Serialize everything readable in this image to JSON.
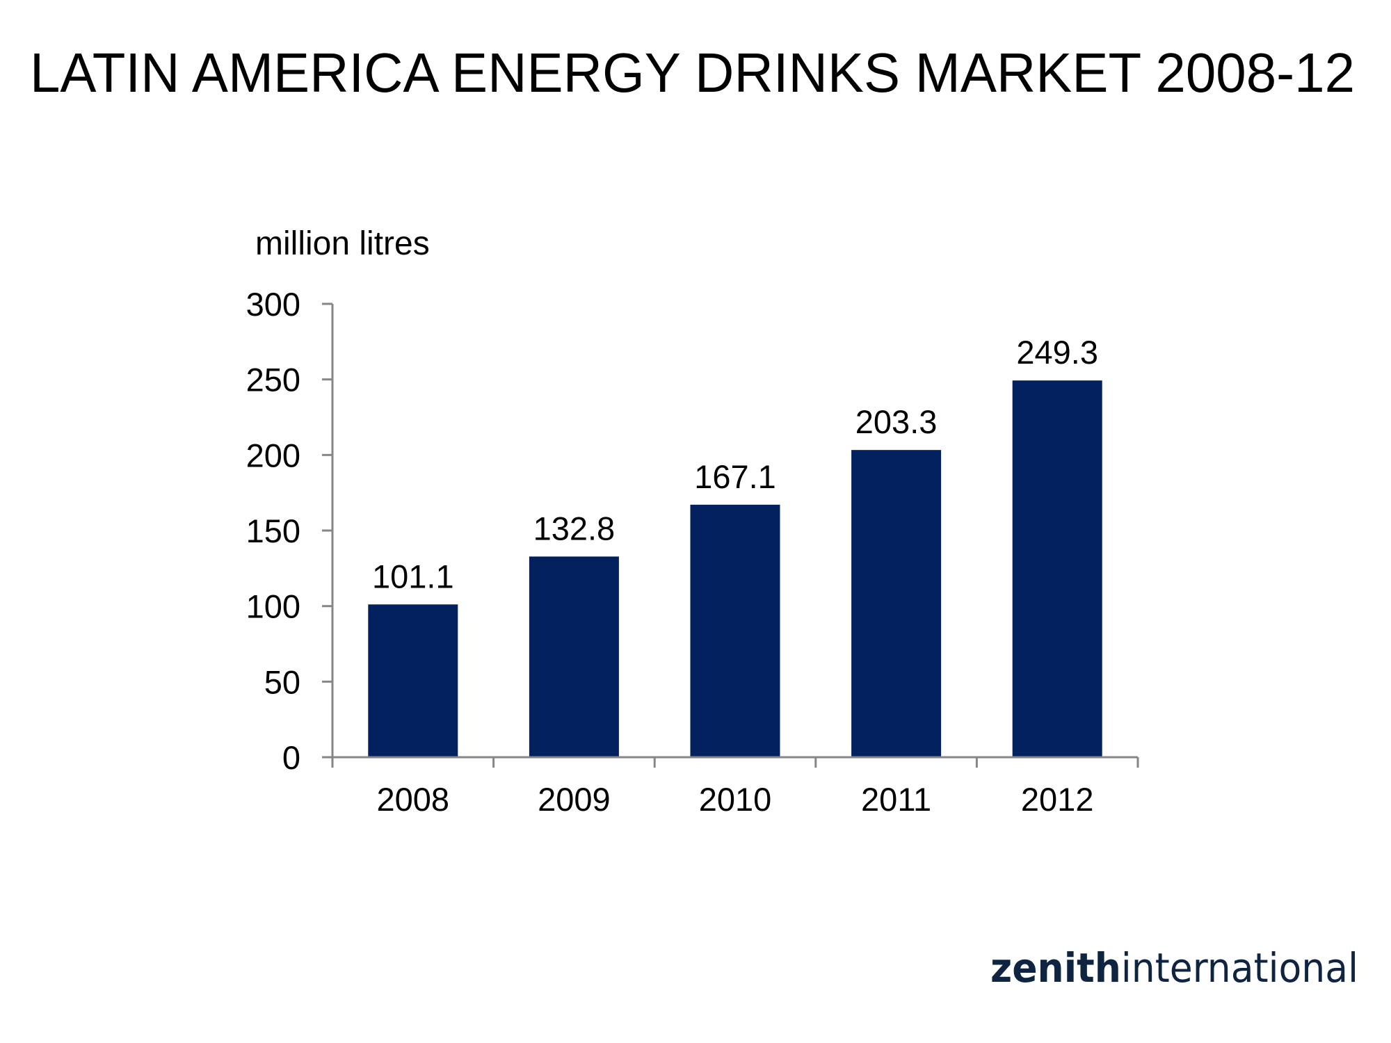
{
  "slide": {
    "title": "LATIN AMERICA ENERGY DRINKS MARKET 2008-12"
  },
  "logo": {
    "part1": "zenith",
    "part2": "international",
    "color": "#0f2440"
  },
  "chart_data": {
    "type": "bar",
    "title": "LATIN AMERICA ENERGY DRINKS MARKET 2008-12",
    "xlabel": "",
    "ylabel": "million litres",
    "categories": [
      "2008",
      "2009",
      "2010",
      "2011",
      "2012"
    ],
    "values": [
      101.1,
      132.8,
      167.1,
      203.3,
      249.3
    ],
    "data_labels": [
      "101.1",
      "132.8",
      "167.1",
      "203.3",
      "249.3"
    ],
    "ylim": [
      0,
      300
    ],
    "yticks": [
      0,
      50,
      100,
      150,
      200,
      250,
      300
    ],
    "ytick_labels": [
      "0",
      "50",
      "100",
      "150",
      "200",
      "250",
      "300"
    ],
    "grid": false,
    "legend": "none",
    "bar_color": "#03215e",
    "axis_color": "#868686"
  }
}
